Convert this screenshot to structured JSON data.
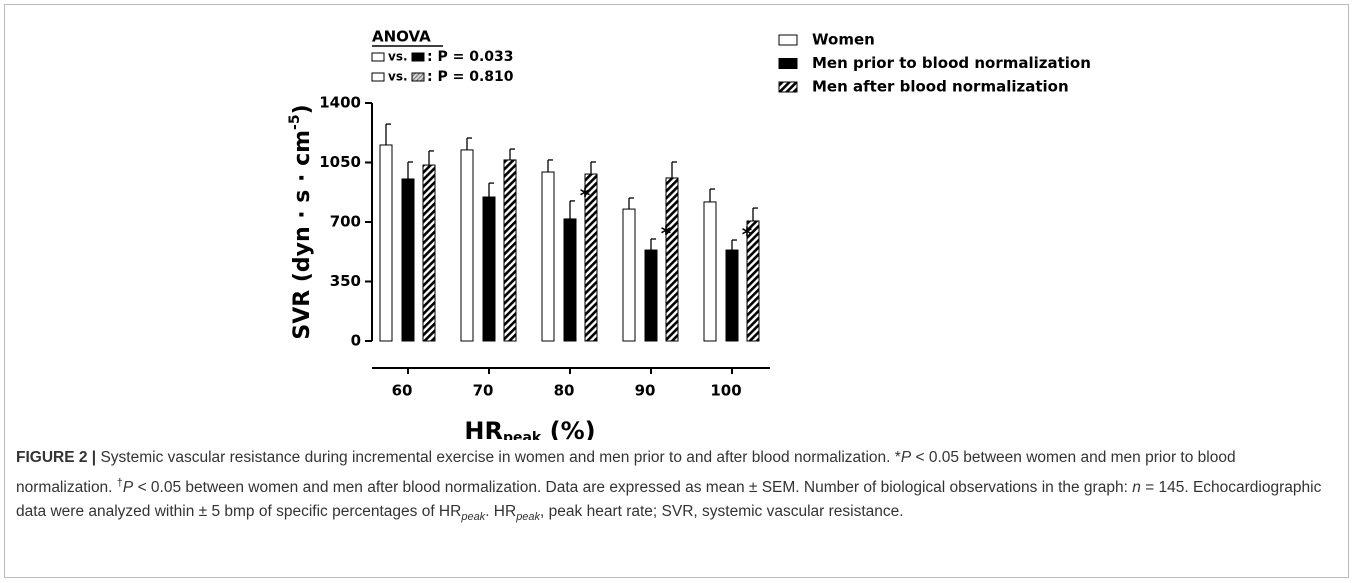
{
  "chart_data": {
    "type": "bar",
    "anova": {
      "title": "ANOVA",
      "comparisons": [
        {
          "text": "vs.",
          "stat": ": P = 0.033"
        },
        {
          "text": "vs.",
          "stat": ": P = 0.810"
        }
      ]
    },
    "y_label": {
      "text": "SVR (dyn · s · cm",
      "sup": "-5",
      "end": ")"
    },
    "x_label": {
      "text": "HR",
      "sub": "peak",
      "end": " (%)"
    },
    "categories": [
      "60",
      "70",
      "80",
      "90",
      "100"
    ],
    "series": [
      {
        "name": "Women",
        "color": "#ffffff",
        "pattern": "none",
        "values": [
          1153,
          1124,
          994,
          776,
          818
        ],
        "errors": [
          123,
          70,
          71,
          65,
          76
        ]
      },
      {
        "name": "Men prior to blood normalization",
        "color": "#000000",
        "pattern": "none",
        "values": [
          953,
          847,
          718,
          535,
          535
        ],
        "errors": [
          100,
          82,
          106,
          65,
          59
        ]
      },
      {
        "name": "Men after blood normalization",
        "color": "#000000",
        "pattern": "hatch",
        "values": [
          1035,
          1065,
          982,
          959,
          706
        ],
        "errors": [
          83,
          64,
          71,
          94,
          76
        ]
      }
    ],
    "significance": [
      null,
      null,
      "*",
      "*",
      "*"
    ],
    "ylim": [
      0,
      1400
    ],
    "yticks": [
      0,
      350,
      700,
      1050,
      1400
    ]
  },
  "caption": {
    "label": "FIGURE 2 |",
    "segments": [
      " Systemic vascular resistance during incremental exercise in women and men prior to and after blood normalization. *",
      {
        "italic": "P"
      },
      " < 0.05 between women and men prior to blood normalization. ",
      {
        "sup": "†"
      },
      {
        "italic": "P"
      },
      " < 0.05 between women and men after blood normalization. Data are expressed as mean ± SEM. Number of biological observations in the graph: ",
      {
        "italic": "n"
      },
      " = 145. Echocardiographic data were analyzed within ± 5 bmp of specific percentages of HR",
      {
        "sub": "peak"
      },
      ". HR",
      {
        "sub": "peak"
      },
      ", peak heart rate; SVR, systemic vascular resistance."
    ]
  }
}
